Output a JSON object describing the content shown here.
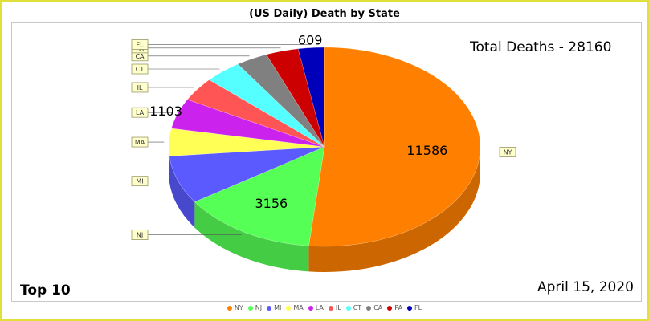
{
  "chart_data": {
    "type": "pie",
    "title": "(US Daily) Death by State",
    "categories": [
      "NY",
      "NJ",
      "MI",
      "MA",
      "LA",
      "IL",
      "CT",
      "CA",
      "PA",
      "FL"
    ],
    "values": [
      11586,
      3156,
      1760,
      1001,
      1103,
      868,
      868,
      740,
      757,
      609
    ],
    "value_labels": [
      "11586",
      "3156",
      "",
      "",
      "1103",
      "",
      "",
      "",
      "",
      "609"
    ],
    "colors": [
      "#ff8000",
      "#55ff55",
      "#5a5aff",
      "#ffff55",
      "#cc22ee",
      "#ff5555",
      "#55ffff",
      "#808080",
      "#cc0000",
      "#0000bb"
    ],
    "legend_placement": "bottom"
  },
  "annotations": {
    "total": "Total Deaths - 28160",
    "top": "Top 10",
    "date": "April 15, 2020"
  }
}
